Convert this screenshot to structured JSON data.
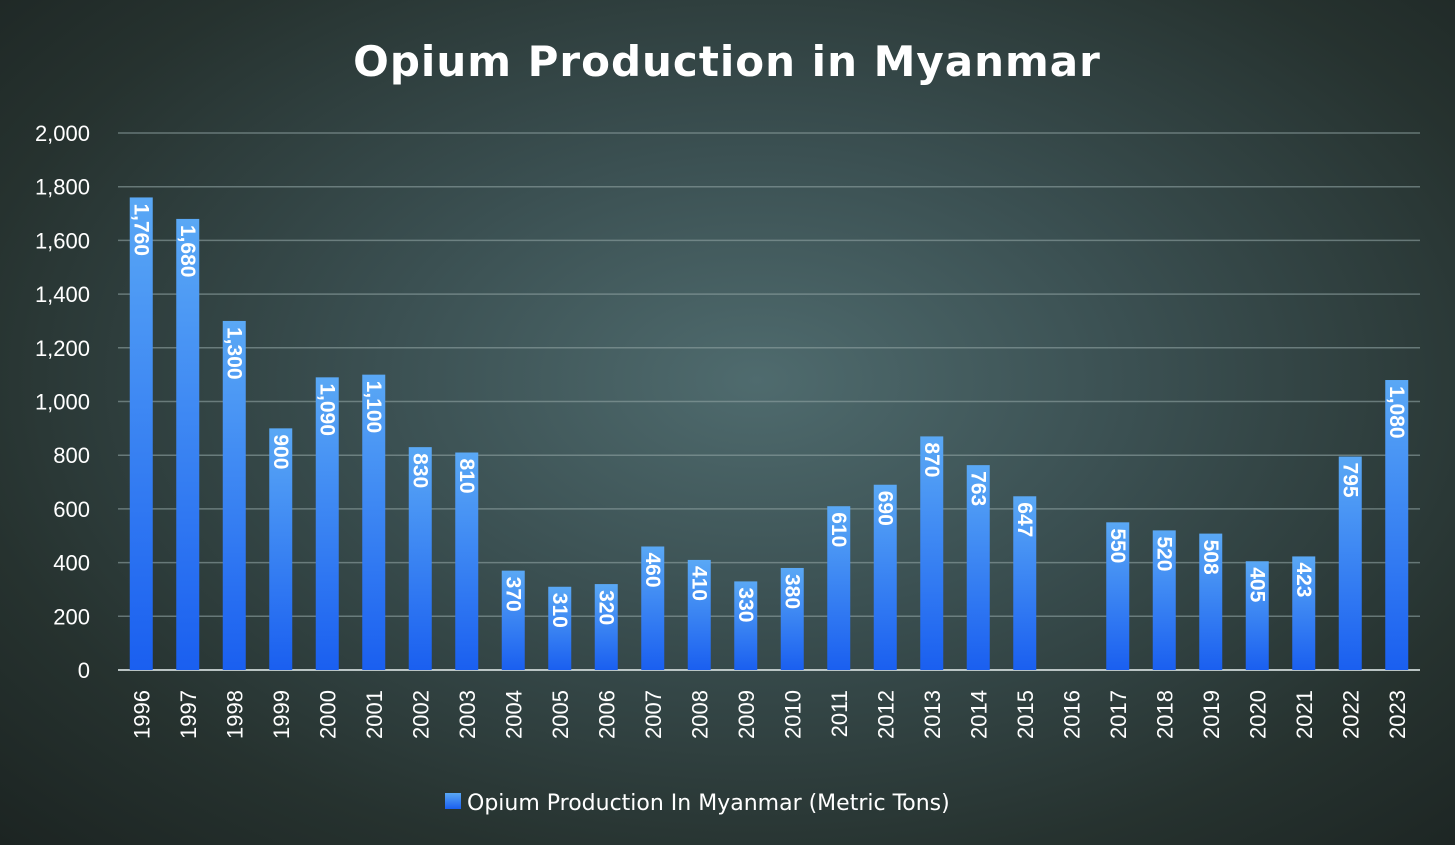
{
  "chart_data": {
    "type": "bar",
    "title": "Opium Production in Myanmar",
    "categories": [
      "1996",
      "1997",
      "1998",
      "1999",
      "2000",
      "2001",
      "2002",
      "2003",
      "2004",
      "2005",
      "2006",
      "2007",
      "2008",
      "2009",
      "2010",
      "2011",
      "2012",
      "2013",
      "2014",
      "2015",
      "2016",
      "2017",
      "2018",
      "2019",
      "2020",
      "2021",
      "2022",
      "2023"
    ],
    "series": [
      {
        "name": "Opium Production In Myanmar (Metric Tons)",
        "values": [
          1760,
          1680,
          1300,
          900,
          1090,
          1100,
          830,
          810,
          370,
          310,
          320,
          460,
          410,
          330,
          380,
          610,
          690,
          870,
          763,
          647,
          null,
          550,
          520,
          508,
          405,
          423,
          795,
          1080
        ],
        "labels": [
          "1,760",
          "1,680",
          "1,300",
          "900",
          "1,090",
          "1,100",
          "830",
          "810",
          "370",
          "310",
          "320",
          "460",
          "410",
          "330",
          "380",
          "610",
          "690",
          "870",
          "763",
          "647",
          "",
          "550",
          "520",
          "508",
          "405",
          "423",
          "795",
          "1,080"
        ]
      }
    ],
    "yticks": [
      "0",
      "200",
      "400",
      "600",
      "800",
      "1,000",
      "1,200",
      "1,400",
      "1,600",
      "1,800",
      "2,000"
    ],
    "ylim": [
      0,
      2000
    ],
    "grid": true,
    "legend_position": "bottom",
    "colors": {
      "bar_top": "#5aa8f5",
      "bar_bottom": "#1a5ff0",
      "grid": "#8fa2a2",
      "text": "#ffffff"
    }
  }
}
